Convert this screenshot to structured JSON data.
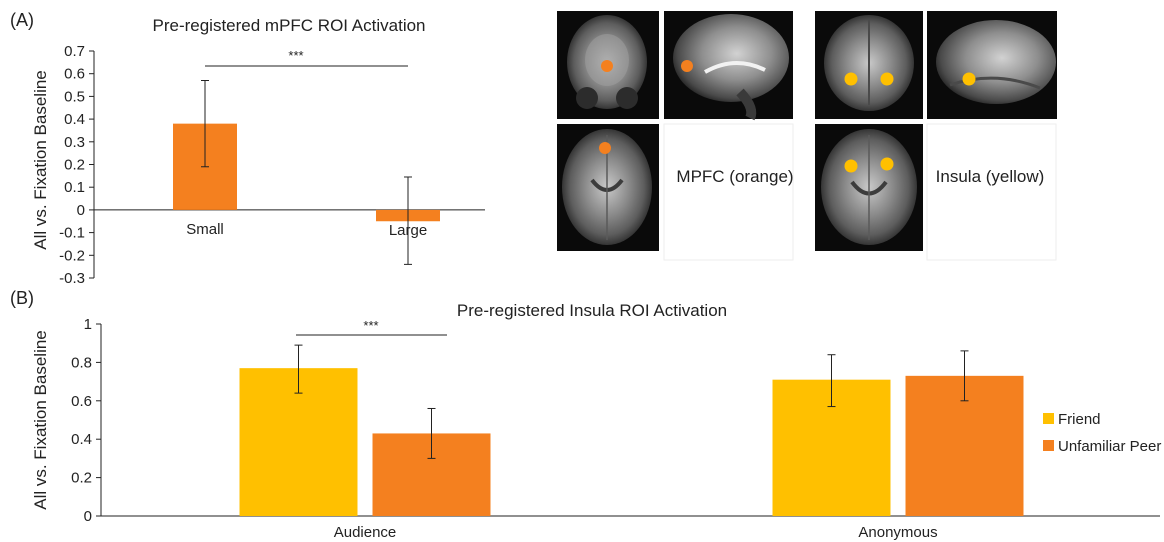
{
  "panel_labels": {
    "a": "(A)",
    "b": "(B)"
  },
  "colors": {
    "orange": "#F4801F",
    "yellow": "#FFC000",
    "axis": "#222222",
    "brain_bg": "#0a0a0a"
  },
  "brain_captions": {
    "mpfc": "MPFC (orange)",
    "insula": "Insula (yellow)"
  },
  "chart_data": [
    {
      "id": "A",
      "type": "bar",
      "title": "Pre-registered mPFC ROI Activation",
      "ylabel": "All vs. Fixation Baseline",
      "xlabel": "",
      "categories": [
        "Small",
        "Large"
      ],
      "values": [
        0.38,
        -0.05
      ],
      "errors": [
        [
          0.19,
          0.57
        ],
        [
          -0.24,
          0.145
        ]
      ],
      "ylim": [
        -0.3,
        0.7
      ],
      "yticks": [
        "0.7",
        "0.6",
        "0.5",
        "0.4",
        "0.3",
        "0.2",
        "0.1",
        "0",
        "-0.1",
        "-0.2",
        "-0.3"
      ],
      "significance": "***",
      "color": "#F4801F",
      "grid": false
    },
    {
      "id": "B",
      "type": "bar",
      "title": "Pre-registered Insula ROI Activation",
      "ylabel": "All vs. Fixation Baseline",
      "xlabel": "",
      "categories": [
        "Audience",
        "Anonymous"
      ],
      "series": [
        {
          "name": "Friend",
          "color": "#FFC000",
          "values": [
            0.77,
            0.71
          ],
          "errors": [
            [
              0.64,
              0.89
            ],
            [
              0.57,
              0.84
            ]
          ]
        },
        {
          "name": "Unfamiliar Peer",
          "color": "#F4801F",
          "values": [
            0.43,
            0.73
          ],
          "errors": [
            [
              0.3,
              0.56
            ],
            [
              0.6,
              0.86
            ]
          ]
        }
      ],
      "ylim": [
        0,
        1
      ],
      "yticks": [
        "1",
        "0.8",
        "0.6",
        "0.4",
        "0.2",
        "0"
      ],
      "significance": "***",
      "legend": "right",
      "grid": false
    }
  ]
}
